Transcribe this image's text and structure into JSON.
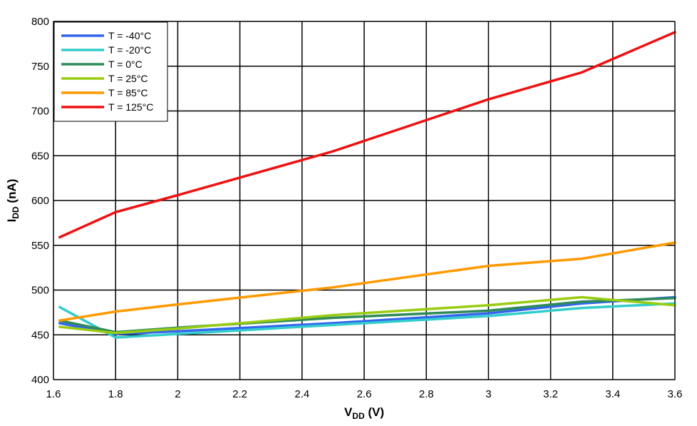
{
  "chart_data": {
    "type": "line",
    "title": "",
    "xlabel": "V",
    "xlabel_sub": "DD",
    "xlabel_unit": " (V)",
    "ylabel": "I",
    "ylabel_sub": "DD",
    "ylabel_unit": " (nA)",
    "xlim": [
      1.6,
      3.6
    ],
    "ylim": [
      400,
      800
    ],
    "xticks": [
      "1.6",
      "1.8",
      "2",
      "2.2",
      "2.4",
      "2.6",
      "2.8",
      "3",
      "3.2",
      "3.4",
      "3.6"
    ],
    "yticks": [
      "400",
      "450",
      "500",
      "550",
      "600",
      "650",
      "700",
      "750",
      "800"
    ],
    "grid": true,
    "legend_position": "top-left",
    "series": [
      {
        "name": "T = -40°C",
        "color": "#3366ee",
        "x": [
          1.62,
          1.8,
          2.0,
          2.5,
          3.0,
          3.3,
          3.6
        ],
        "y": [
          463,
          451,
          454,
          463,
          474,
          485,
          492
        ]
      },
      {
        "name": "T = -20°C",
        "color": "#33cccc",
        "x": [
          1.62,
          1.8,
          2.0,
          2.5,
          3.0,
          3.3,
          3.6
        ],
        "y": [
          481,
          447,
          451,
          461,
          471,
          480,
          485
        ]
      },
      {
        "name": "T = 0°C",
        "color": "#2e8b57",
        "x": [
          1.62,
          1.8,
          2.0,
          2.5,
          3.0,
          3.3,
          3.6
        ],
        "y": [
          466,
          453,
          458,
          469,
          477,
          487,
          491
        ]
      },
      {
        "name": "T = 25°C",
        "color": "#99cc11",
        "x": [
          1.62,
          1.8,
          2.0,
          2.5,
          3.0,
          3.3,
          3.6
        ],
        "y": [
          459,
          452,
          457,
          472,
          483,
          492,
          483
        ]
      },
      {
        "name": "T = 85°C",
        "color": "#ff9900",
        "x": [
          1.62,
          1.8,
          2.0,
          2.5,
          3.0,
          3.3,
          3.6
        ],
        "y": [
          466,
          476,
          484,
          503,
          527,
          535,
          553
        ]
      },
      {
        "name": "T = 125°C",
        "color": "#ee1111",
        "x": [
          1.62,
          1.8,
          2.0,
          2.5,
          3.0,
          3.3,
          3.6
        ],
        "y": [
          559,
          587,
          606,
          655,
          713,
          743,
          788
        ]
      }
    ]
  }
}
